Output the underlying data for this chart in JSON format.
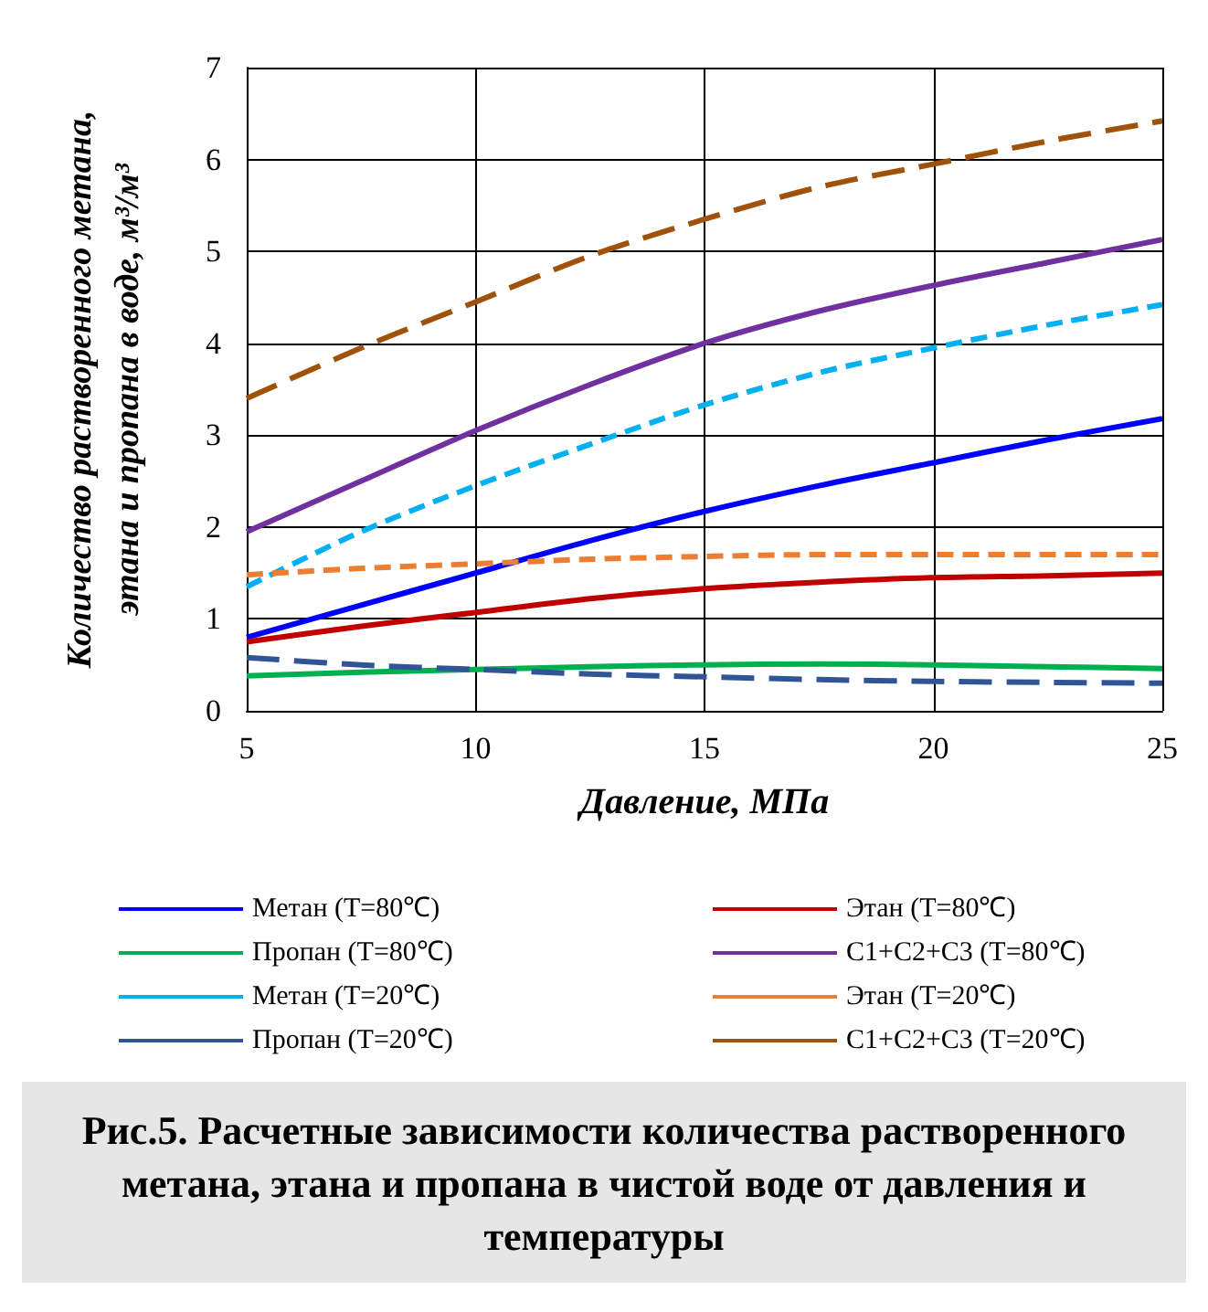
{
  "chart_data": {
    "type": "line",
    "xlabel": "Давление, МПа",
    "ylabel": "Количество растворенного метана, этана и пропана в воде, м³/м³",
    "x": [
      5,
      7.5,
      10,
      12.5,
      15,
      17.5,
      20,
      22.5,
      25
    ],
    "xlim": [
      5,
      25
    ],
    "xticks": [
      5,
      10,
      15,
      20,
      25
    ],
    "ylim": [
      0,
      7
    ],
    "yticks": [
      0,
      1,
      2,
      3,
      4,
      5,
      6,
      7
    ],
    "grid": true,
    "legend": "bottom",
    "marker": "none",
    "series": [
      {
        "name": "Метан (Т=80℃)",
        "color": "#0000ff",
        "line_style": "solid",
        "values": [
          0.8,
          1.15,
          1.5,
          1.85,
          2.17,
          2.45,
          2.7,
          2.95,
          3.18
        ]
      },
      {
        "name": "Этан (Т=80℃)",
        "color": "#c00000",
        "line_style": "solid",
        "values": [
          0.75,
          0.92,
          1.07,
          1.22,
          1.33,
          1.4,
          1.45,
          1.47,
          1.5
        ]
      },
      {
        "name": "Пропан (Т=80℃)",
        "color": "#00b050",
        "line_style": "solid",
        "values": [
          0.38,
          0.42,
          0.45,
          0.48,
          0.5,
          0.51,
          0.5,
          0.48,
          0.46
        ]
      },
      {
        "name": "С1+С2+С3 (Т=80℃)",
        "color": "#7030a0",
        "line_style": "solid",
        "values": [
          1.95,
          2.5,
          3.05,
          3.55,
          4.0,
          4.35,
          4.63,
          4.88,
          5.13
        ]
      },
      {
        "name": "Метан (Т=20℃)",
        "color": "#00b0f0",
        "line_style": "dashed",
        "values": [
          1.35,
          1.95,
          2.45,
          2.9,
          3.33,
          3.68,
          3.95,
          4.2,
          4.42
        ]
      },
      {
        "name": "Этан (Т=20℃)",
        "color": "#ed7d31",
        "line_style": "dashed",
        "values": [
          1.48,
          1.55,
          1.6,
          1.65,
          1.68,
          1.7,
          1.7,
          1.7,
          1.7
        ]
      },
      {
        "name": "Пропан (Т=20℃)",
        "color": "#2f5597",
        "line_style": "dashed",
        "values": [
          0.58,
          0.5,
          0.45,
          0.4,
          0.37,
          0.34,
          0.32,
          0.31,
          0.3
        ]
      },
      {
        "name": "С1+С2+С3 (Т=20℃)",
        "color": "#a0520a",
        "line_style": "dashed",
        "values": [
          3.4,
          3.95,
          4.45,
          4.95,
          5.35,
          5.7,
          5.95,
          6.2,
          6.42
        ]
      }
    ],
    "annotations": [
      "Рис.5. Расчетные зависимости количества растворенного метана, этана и пропана в чистой воде от давления и температуры"
    ]
  }
}
